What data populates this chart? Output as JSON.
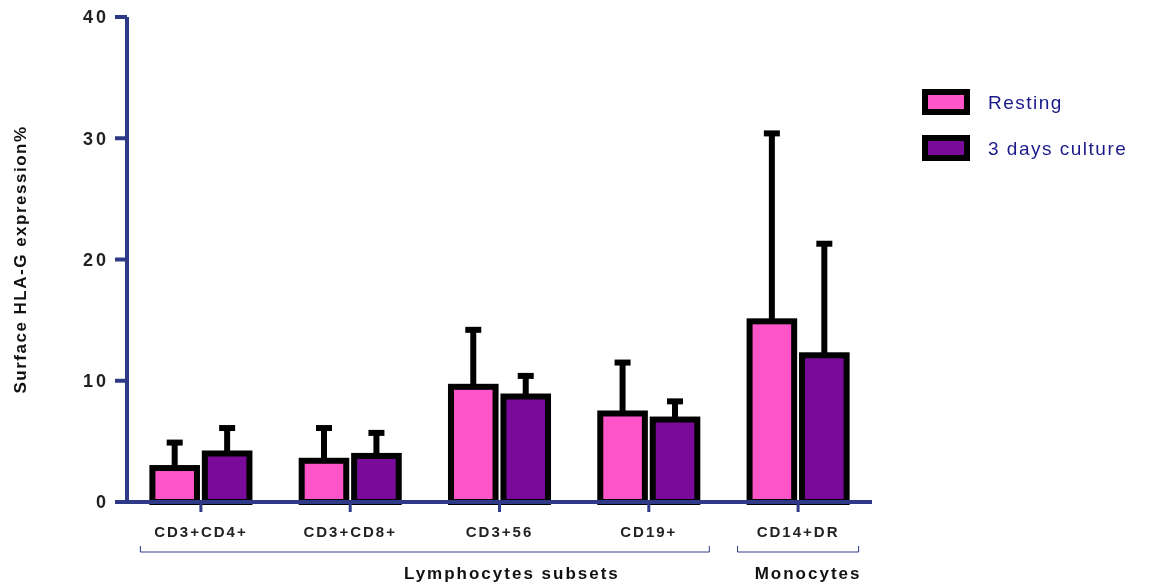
{
  "chart_data": {
    "type": "bar",
    "ylabel": "Surface HLA-G expression%",
    "categories": [
      "CD3+CD4+",
      "CD3+CD8+",
      "CD3+56",
      "CD19+",
      "CD14+DR"
    ],
    "series": [
      {
        "name": "Resting",
        "color": "#ff55c8",
        "values": [
          2.8,
          3.4,
          9.5,
          7.3,
          14.9
        ],
        "errors": [
          [
            2.8,
            4.9
          ],
          [
            3.4,
            6.1
          ],
          [
            9.5,
            14.2
          ],
          [
            7.3,
            11.5
          ],
          [
            14.9,
            30.4
          ]
        ]
      },
      {
        "name": "3 days culture",
        "color": "#7a0a9a",
        "values": [
          4.0,
          3.8,
          8.7,
          6.8,
          12.1
        ],
        "errors": [
          [
            4.0,
            6.1
          ],
          [
            3.8,
            5.7
          ],
          [
            8.7,
            10.4
          ],
          [
            6.8,
            8.3
          ],
          [
            12.1,
            21.3
          ]
        ]
      }
    ],
    "ylim": [
      0,
      40
    ],
    "yticks": [
      0,
      10,
      20,
      30,
      40
    ],
    "legend": "top right",
    "grid": false,
    "annotations": [
      "Lymphocytes subsets",
      "Monocytes"
    ]
  }
}
